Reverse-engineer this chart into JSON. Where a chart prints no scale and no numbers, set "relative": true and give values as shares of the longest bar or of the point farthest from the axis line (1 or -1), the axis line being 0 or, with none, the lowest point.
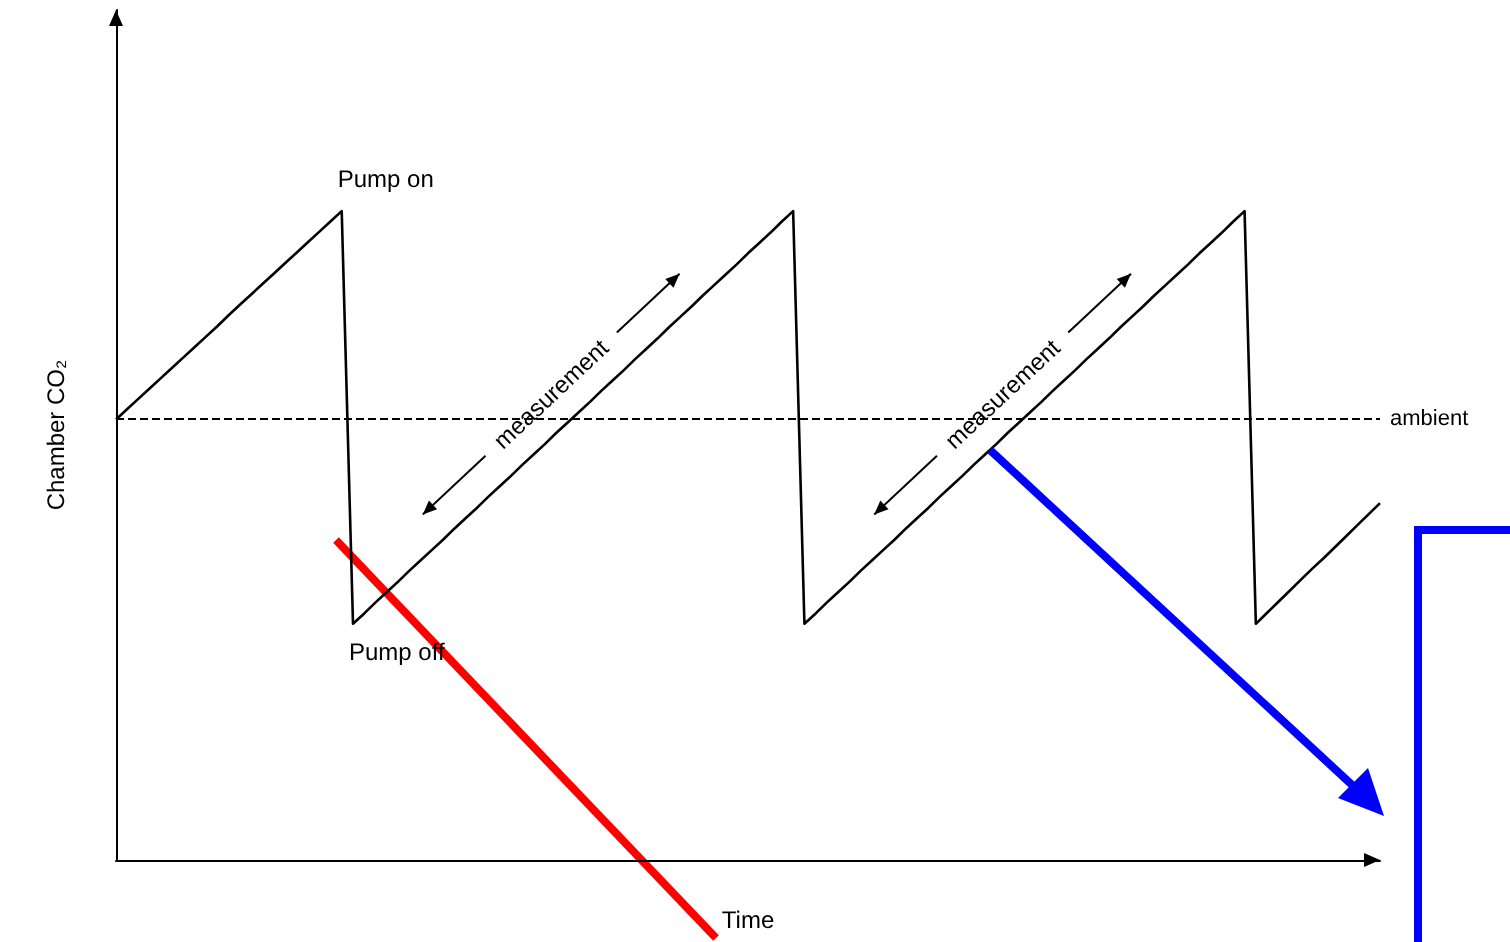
{
  "chart_data": {
    "type": "line",
    "relative": true,
    "xlabel": "Time",
    "ylabel": "Chamber CO₂",
    "categories": [
      null,
      null,
      null,
      null,
      null,
      null,
      null,
      null,
      null,
      null,
      null,
      null,
      null,
      null,
      null,
      null,
      null,
      null,
      null,
      null,
      null,
      null,
      null,
      null,
      null,
      null,
      null,
      null,
      null,
      null,
      null,
      null,
      null,
      null,
      null,
      null,
      null,
      null,
      null,
      null,
      null,
      null,
      null,
      null,
      null,
      null,
      null,
      null,
      null,
      null,
      null,
      null,
      null,
      null,
      null,
      null,
      null,
      null,
      null,
      null,
      null,
      null,
      null,
      null,
      null,
      null,
      null,
      null,
      null,
      null,
      null,
      null,
      null,
      null,
      null,
      null,
      null,
      null,
      null,
      null,
      null,
      null,
      null,
      null,
      null,
      null,
      null,
      null,
      null,
      null,
      null,
      null,
      null,
      null,
      null,
      null,
      null,
      null,
      null,
      null,
      null,
      null,
      null,
      null,
      null,
      null,
      null,
      null,
      null,
      null,
      null,
      null,
      null
    ],
    "series": [
      {
        "color": "#000000",
        "values": [
          0.679,
          0.695,
          0.711,
          0.727,
          0.743,
          0.759,
          0.775,
          0.791,
          0.807,
          0.823,
          0.84,
          0.856,
          0.872,
          0.888,
          0.904,
          0.92,
          0.936,
          0.952,
          0.968,
          0.984,
          1,
          0.364,
          0.38,
          0.397,
          0.413,
          0.429,
          0.446,
          0.462,
          0.478,
          0.494,
          0.511,
          0.527,
          0.543,
          0.56,
          0.576,
          0.592,
          0.609,
          0.625,
          0.641,
          0.658,
          0.674,
          0.69,
          0.706,
          0.723,
          0.739,
          0.755,
          0.772,
          0.788,
          0.804,
          0.821,
          0.837,
          0.853,
          0.87,
          0.886,
          0.902,
          0.918,
          0.935,
          0.951,
          0.967,
          0.984,
          1,
          0.364,
          0.38,
          0.397,
          0.413,
          0.429,
          0.446,
          0.462,
          0.478,
          0.494,
          0.511,
          0.527,
          0.543,
          0.56,
          0.576,
          0.592,
          0.609,
          0.625,
          0.641,
          0.658,
          0.674,
          0.69,
          0.706,
          0.723,
          0.739,
          0.755,
          0.772,
          0.788,
          0.804,
          0.821,
          0.837,
          0.853,
          0.87,
          0.886,
          0.902,
          0.918,
          0.935,
          0.951,
          0.967,
          0.984,
          1,
          0.364,
          0.381,
          0.398,
          0.415,
          0.432,
          0.449,
          0.465,
          0.482,
          0.499,
          0.516,
          0.533,
          0.55
        ]
      }
    ],
    "grid": false,
    "line_style": "solid",
    "ref_lines": [
      {
        "axis": "y",
        "value": 0.679,
        "label": "ambient",
        "color": "#000000",
        "line_style": "dashed"
      }
    ],
    "annotations": [
      "Pump on",
      "Pump off",
      "measurement",
      "measurement"
    ]
  }
}
